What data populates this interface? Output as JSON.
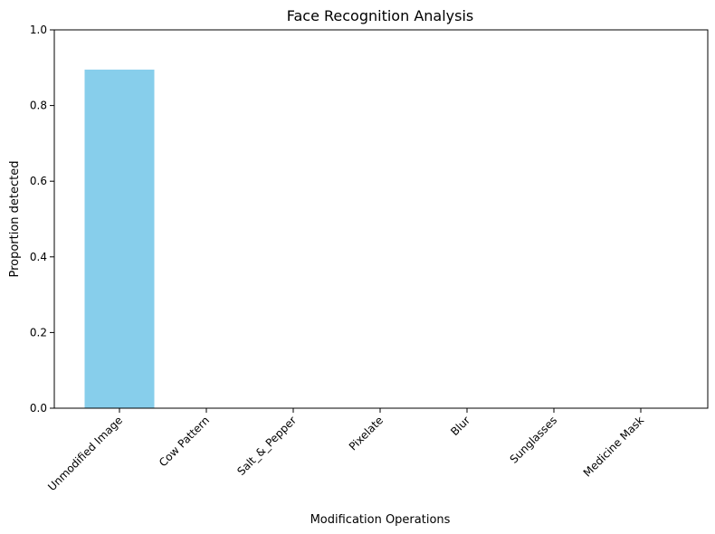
{
  "chart_data": {
    "type": "bar",
    "title": "Face Recognition Analysis",
    "xlabel": "Modification Operations",
    "ylabel": "Proportion detected",
    "categories": [
      "Unmodified Image",
      "Cow Pattern",
      "Salt_&_Pepper",
      "Pixelate",
      "Blur",
      "Sunglasses",
      "Medicine Mask"
    ],
    "values": [
      0.895,
      0,
      0,
      0,
      0,
      0,
      0
    ],
    "ylim": [
      0,
      1
    ],
    "yticks": [
      "0.0",
      "0.2",
      "0.4",
      "0.6",
      "0.8",
      "1.0"
    ],
    "bar_color": "#87ceeb",
    "grid": false,
    "legend": "none"
  }
}
